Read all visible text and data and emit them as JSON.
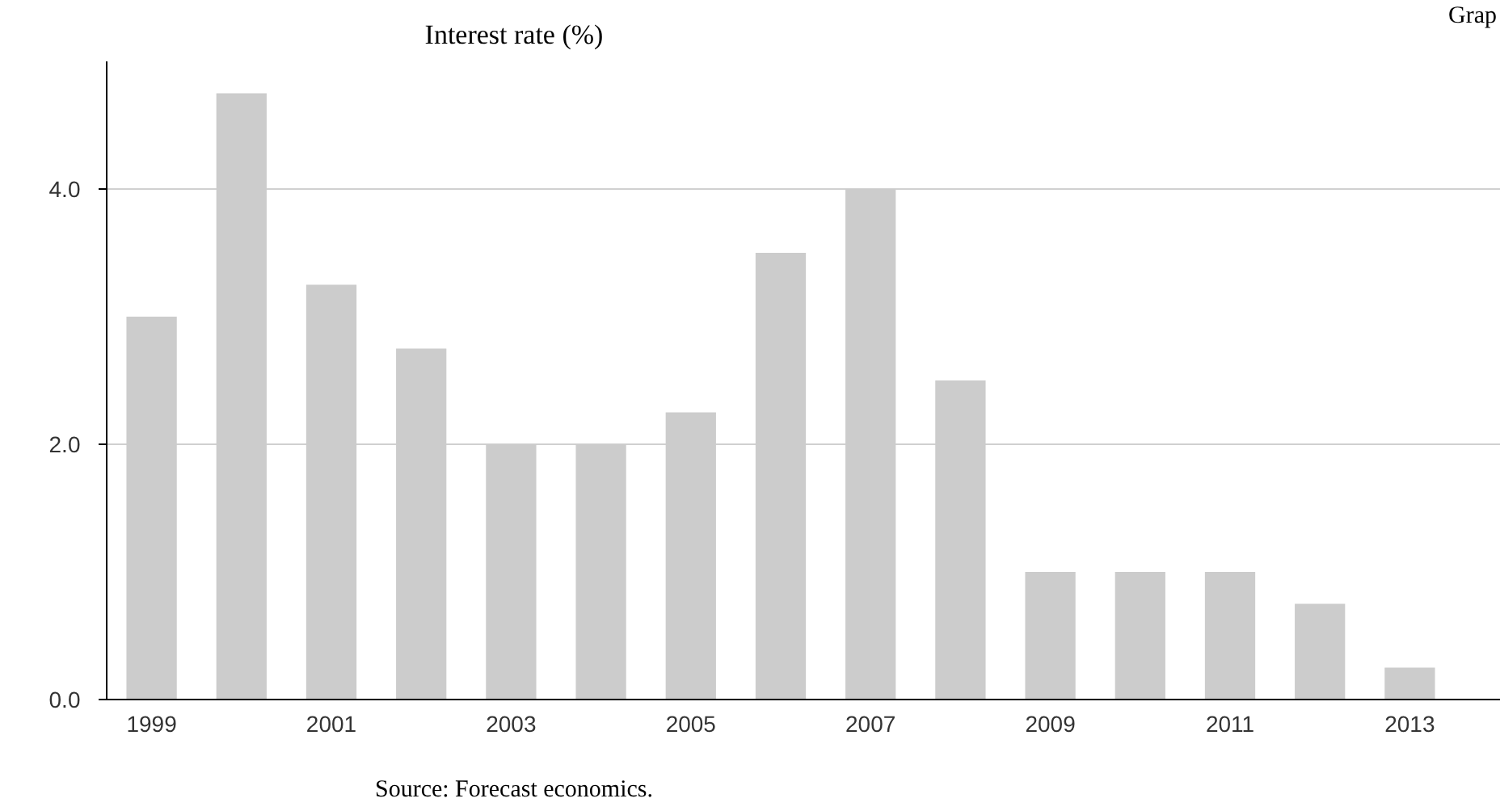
{
  "chart_data": {
    "type": "bar",
    "title": "Interest rate (%)",
    "categories": [
      "1999",
      null,
      "2001",
      null,
      "2003",
      null,
      "2005",
      null,
      "2007",
      null,
      "2009",
      null,
      "2011",
      null,
      "2013"
    ],
    "values": [
      3.0,
      4.75,
      3.25,
      2.75,
      2.0,
      2.0,
      2.25,
      3.5,
      4.0,
      2.5,
      1.0,
      1.0,
      1.0,
      0.75,
      0.25
    ],
    "color": "#cccccc",
    "ylim": [
      0,
      5
    ],
    "yticks": [
      {
        "value": 0,
        "label": "0.0"
      },
      {
        "value": 2,
        "label": "2.0"
      },
      {
        "value": 4,
        "label": "4.0"
      }
    ],
    "grid": "y",
    "annotations": [
      "Source: Forecast economics.",
      "Grap"
    ]
  }
}
